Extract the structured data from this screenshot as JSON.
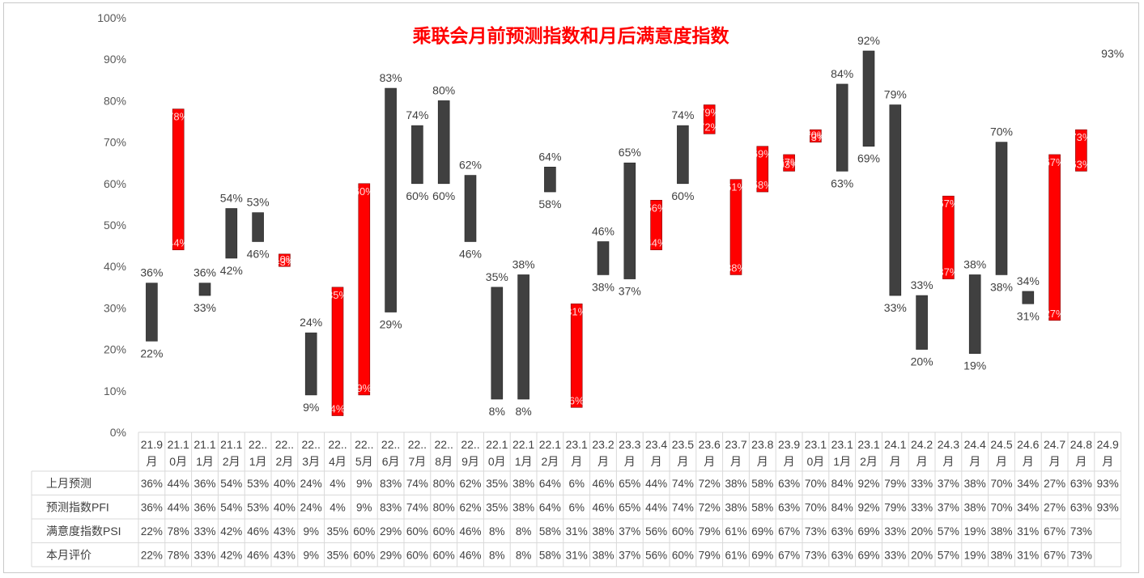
{
  "chart_data": {
    "type": "floating-bar",
    "title": "乘联会月前预测指数和月后满意度指数",
    "yticks": [
      "0%",
      "10%",
      "20%",
      "30%",
      "40%",
      "50%",
      "60%",
      "70%",
      "80%",
      "90%",
      "100%"
    ],
    "ylim": [
      0,
      100
    ],
    "categories": [
      [
        "21.9",
        "月"
      ],
      [
        "21.1",
        "0月"
      ],
      [
        "21.1",
        "1月"
      ],
      [
        "21.1",
        "2月"
      ],
      [
        "22..",
        "1月"
      ],
      [
        "22..",
        "2月"
      ],
      [
        "22..",
        "3月"
      ],
      [
        "22..",
        "4月"
      ],
      [
        "22..",
        "5月"
      ],
      [
        "22..",
        "6月"
      ],
      [
        "22..",
        "7月"
      ],
      [
        "22..",
        "8月"
      ],
      [
        "22..",
        "9月"
      ],
      [
        "22.1",
        "0月"
      ],
      [
        "22.1",
        "1月"
      ],
      [
        "22.1",
        "2月"
      ],
      [
        "23.1",
        "月"
      ],
      [
        "23.2",
        "月"
      ],
      [
        "23.3",
        "月"
      ],
      [
        "23.4",
        "月"
      ],
      [
        "23.5",
        "月"
      ],
      [
        "23.6",
        "月"
      ],
      [
        "23.7",
        "月"
      ],
      [
        "23.8",
        "月"
      ],
      [
        "23.9",
        "月"
      ],
      [
        "23.1",
        "0月"
      ],
      [
        "23.1",
        "1月"
      ],
      [
        "23.1",
        "2月"
      ],
      [
        "24.1",
        "月"
      ],
      [
        "24.2",
        "月"
      ],
      [
        "24.3",
        "月"
      ],
      [
        "24.4",
        "月"
      ],
      [
        "24.5",
        "月"
      ],
      [
        "24.6",
        "月"
      ],
      [
        "24.7",
        "月"
      ],
      [
        "24.8",
        "月"
      ],
      [
        "24.9",
        "月"
      ]
    ],
    "series": [
      {
        "name": "上月预测",
        "values": [
          36,
          44,
          36,
          54,
          53,
          40,
          24,
          4,
          9,
          83,
          74,
          80,
          62,
          35,
          38,
          64,
          6,
          46,
          65,
          44,
          74,
          72,
          38,
          58,
          63,
          70,
          84,
          92,
          79,
          33,
          37,
          38,
          70,
          34,
          27,
          63,
          93
        ]
      },
      {
        "name": "预测指数PFI",
        "values": [
          36,
          44,
          36,
          54,
          53,
          40,
          24,
          4,
          9,
          83,
          74,
          80,
          62,
          35,
          38,
          64,
          6,
          46,
          65,
          44,
          74,
          72,
          38,
          58,
          63,
          70,
          84,
          92,
          79,
          33,
          37,
          38,
          70,
          34,
          27,
          63,
          93
        ]
      },
      {
        "name": "满意度指数PSI",
        "values": [
          22,
          78,
          33,
          42,
          46,
          43,
          9,
          35,
          60,
          29,
          60,
          60,
          46,
          8,
          8,
          58,
          31,
          38,
          37,
          56,
          60,
          79,
          61,
          69,
          67,
          73,
          63,
          69,
          33,
          20,
          57,
          19,
          38,
          31,
          67,
          73,
          null
        ]
      },
      {
        "name": "本月评价",
        "values": [
          22,
          78,
          33,
          42,
          46,
          43,
          9,
          35,
          60,
          29,
          60,
          60,
          46,
          8,
          8,
          58,
          31,
          38,
          37,
          56,
          60,
          79,
          61,
          69,
          67,
          73,
          63,
          69,
          33,
          20,
          57,
          19,
          38,
          31,
          67,
          73,
          null
        ]
      }
    ],
    "colors": {
      "up_bar": "#ff0000",
      "down_bar": "#404040",
      "title": "#ff0000",
      "grid": "#d9d9d9"
    }
  }
}
